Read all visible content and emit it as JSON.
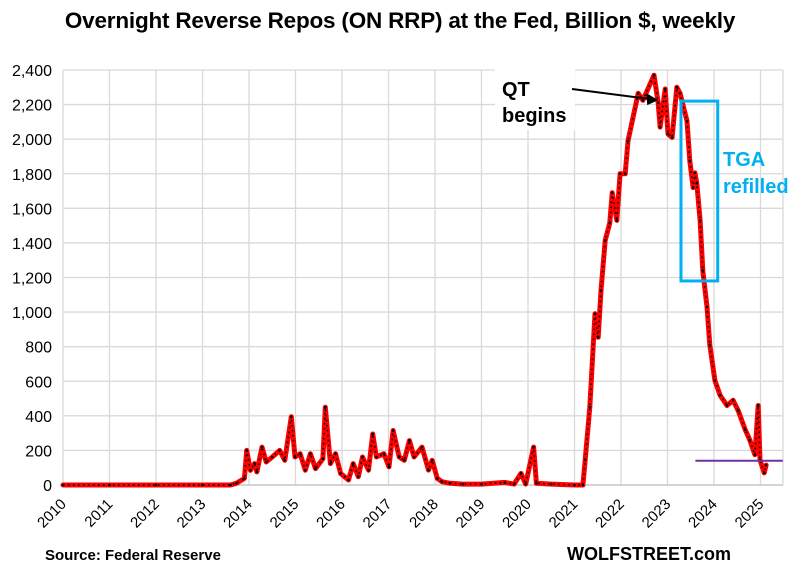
{
  "chart_data": {
    "type": "line",
    "title": "Overnight Reverse Repos (ON RRP) at the Fed, Billion $, weekly",
    "xlabel": "",
    "ylabel": "",
    "xlim": [
      2010,
      2025.48
    ],
    "ylim": [
      0,
      2400
    ],
    "grid": true,
    "yticks": [
      0,
      200,
      400,
      600,
      800,
      1000,
      1200,
      1400,
      1600,
      1800,
      2000,
      2200,
      2400
    ],
    "ytick_labels": [
      "0",
      "200",
      "400",
      "600",
      "800",
      "1,000",
      "1,200",
      "1,400",
      "1,600",
      "1,800",
      "2,000",
      "2,200",
      "2,400"
    ],
    "xticks": [
      2010,
      2011,
      2012,
      2013,
      2014,
      2015,
      2016,
      2017,
      2018,
      2019,
      2020,
      2021,
      2022,
      2023,
      2024,
      2025
    ],
    "xtick_labels": [
      "2010",
      "2011",
      "2012",
      "2013",
      "2014",
      "2015",
      "2016",
      "2017",
      "2018",
      "2019",
      "2020",
      "2021",
      "2022",
      "2023",
      "2024",
      "2025"
    ],
    "series": [
      {
        "name": "ON RRP",
        "color": "#ff0000",
        "marker_color": "#000000",
        "x": [
          2010.0,
          2011.0,
          2012.0,
          2013.0,
          2013.6,
          2013.73,
          2013.9,
          2013.95,
          2014.03,
          2014.12,
          2014.17,
          2014.28,
          2014.37,
          2014.5,
          2014.66,
          2014.77,
          2014.91,
          2014.99,
          2015.1,
          2015.21,
          2015.32,
          2015.43,
          2015.59,
          2015.64,
          2015.75,
          2015.86,
          2015.97,
          2016.14,
          2016.24,
          2016.35,
          2016.44,
          2016.57,
          2016.66,
          2016.74,
          2016.9,
          2017.01,
          2017.1,
          2017.23,
          2017.34,
          2017.45,
          2017.55,
          2017.72,
          2017.86,
          2017.94,
          2018.05,
          2018.15,
          2018.32,
          2018.6,
          2019.0,
          2019.5,
          2019.7,
          2019.85,
          2019.95,
          2020.12,
          2020.18,
          2020.5,
          2021.0,
          2021.18,
          2021.23,
          2021.33,
          2021.44,
          2021.51,
          2021.57,
          2021.66,
          2021.76,
          2021.81,
          2021.91,
          2021.98,
          2022.09,
          2022.15,
          2022.37,
          2022.47,
          2022.71,
          2022.8,
          2022.84,
          2022.95,
          2023.01,
          2023.1,
          2023.2,
          2023.27,
          2023.42,
          2023.48,
          2023.55,
          2023.59,
          2023.63,
          2023.7,
          2023.76,
          2023.85,
          2023.91,
          2024.02,
          2024.13,
          2024.28,
          2024.41,
          2024.52,
          2024.67,
          2024.77,
          2024.88,
          2024.95,
          2024.99,
          2025.08,
          2025.12
        ],
        "y": [
          0,
          0,
          0,
          0,
          0,
          10,
          38,
          200,
          85,
          124,
          76,
          219,
          133,
          162,
          200,
          143,
          395,
          162,
          181,
          86,
          181,
          95,
          152,
          450,
          124,
          181,
          67,
          29,
          124,
          48,
          162,
          86,
          295,
          162,
          181,
          105,
          315,
          162,
          143,
          257,
          162,
          219,
          86,
          143,
          38,
          19,
          10,
          5,
          5,
          15,
          5,
          67,
          5,
          219,
          10,
          5,
          0,
          0,
          145,
          450,
          990,
          855,
          1125,
          1415,
          1515,
          1690,
          1530,
          1800,
          1800,
          1990,
          2265,
          2225,
          2370,
          2210,
          2070,
          2290,
          2030,
          2010,
          2300,
          2265,
          2105,
          1875,
          1720,
          1805,
          1745,
          1530,
          1240,
          1030,
          810,
          605,
          520,
          460,
          490,
          430,
          320,
          260,
          175,
          460,
          145,
          70,
          115
        ]
      }
    ],
    "annotations": {
      "qt_label_line1": "QT",
      "qt_label_line2": "begins",
      "qt_arrow_target": {
        "x": 2022.5,
        "y": 2220
      },
      "tga_label_line1": "TGA",
      "tga_label_line2": "refilled",
      "tga_box": {
        "x0": 2023.29,
        "x1": 2024.08,
        "y0": 1180,
        "y1": 2220
      },
      "tga_color": "#00b0f0",
      "reference_line": {
        "x0": 2023.6,
        "x1": 2025.48,
        "y": 140,
        "color": "#7030a0"
      }
    }
  },
  "footer": {
    "source": "Source: Federal Reserve",
    "brand": "WOLFSTREET.com"
  }
}
